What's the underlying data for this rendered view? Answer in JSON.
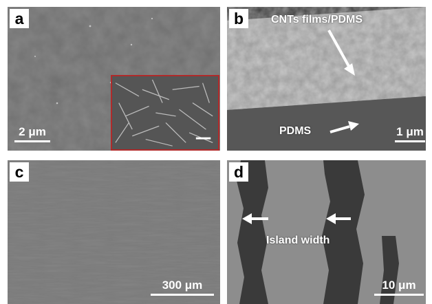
{
  "panels": {
    "a": {
      "label": "a",
      "scale": "2 μm"
    },
    "b": {
      "label": "b",
      "scale": "1 μm",
      "annotation_top": "CNTs films/PDMS",
      "annotation_bottom": "PDMS"
    },
    "c": {
      "label": "c",
      "scale": "300 μm"
    },
    "d": {
      "label": "d",
      "scale": "10 μm",
      "annotation": "Island width"
    }
  },
  "colors": {
    "inset_border": "#b02a2a",
    "background": "#ffffff"
  }
}
